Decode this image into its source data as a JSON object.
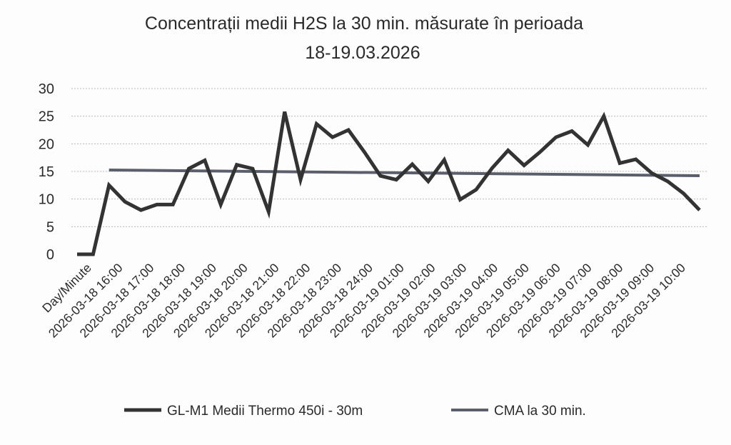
{
  "chart_data": {
    "type": "line",
    "title_lines": [
      "Concentrații medii H2S la 30 min. măsurate în perioada",
      "18-19.03.2026"
    ],
    "xlabel": "",
    "ylabel": "",
    "ylim": [
      0,
      30
    ],
    "yticks": [
      0,
      5,
      10,
      15,
      20,
      25,
      30
    ],
    "grid": true,
    "legend_position": "bottom",
    "x_tick_labels": [
      "Day/Minute",
      "2026-03-18 16:00",
      "2026-03-18 17:00",
      "2026-03-18 18:00",
      "2026-03-18 19:00",
      "2026-03-18 20:00",
      "2026-03-18 21:00",
      "2026-03-18 22:00",
      "2026-03-18 23:00",
      "2026-03-18 24:00",
      "2026-03-19 01:00",
      "2026-03-19 02:00",
      "2026-03-19 03:00",
      "2026-03-19 04:00",
      "2026-03-19 05:00",
      "2026-03-19 06:00",
      "2026-03-19 07:00",
      "2026-03-19 08:00",
      "2026-03-19 09:00",
      "2026-03-19 10:00"
    ],
    "series": [
      {
        "name": "GL-M1 Medii Thermo 450i - 30m",
        "color": "#333333",
        "values": [
          0,
          0,
          12.5,
          9.5,
          8,
          9,
          9,
          15.5,
          17,
          9,
          16.2,
          15.5,
          7.7,
          25.8,
          13.5,
          23.6,
          21.2,
          22.5,
          18.5,
          14.2,
          13.5,
          16.3,
          13.2,
          17.1,
          9.9,
          11.7,
          15.6,
          18.8,
          16.1,
          18.5,
          21.2,
          22.3,
          19.8,
          25,
          16.5,
          17.2,
          14.7,
          13.2,
          11,
          8
        ]
      },
      {
        "name": "CMA la 30 min.",
        "color": "#5a5f6b",
        "values": [
          null,
          null,
          15,
          15,
          15,
          15,
          15,
          15,
          15,
          15,
          15,
          15,
          15,
          15,
          15,
          15,
          15,
          15,
          15,
          15,
          15,
          15,
          15,
          15,
          15,
          15,
          15,
          15,
          15,
          15,
          15,
          15,
          15,
          15,
          15,
          15,
          15,
          15,
          15,
          15
        ]
      }
    ]
  }
}
